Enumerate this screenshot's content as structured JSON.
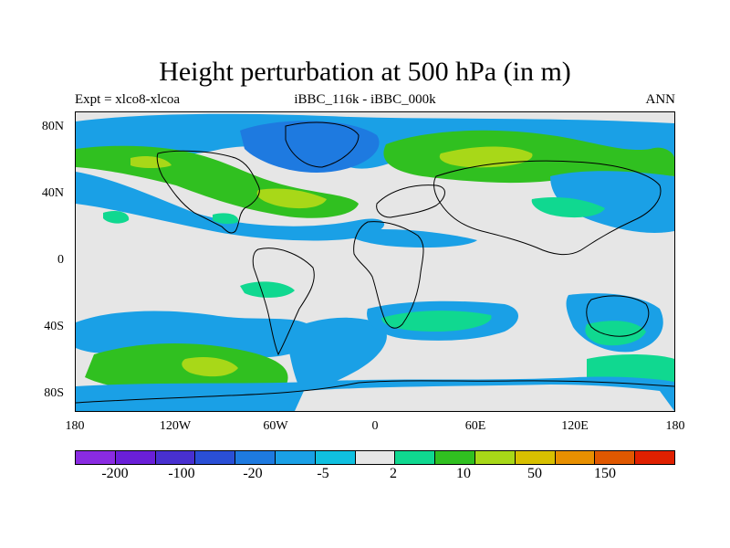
{
  "title": "Height perturbation at 500 hPa (in m)",
  "subtitle": {
    "left": "Expt = xlco8-xlcoa",
    "center": "iBBC_116k - iBBC_000k",
    "right": "ANN"
  },
  "map": {
    "projection": "cylindrical equidistant",
    "lon_range": [
      -180,
      180
    ],
    "lat_range": [
      -90,
      90
    ],
    "lat_labels": [
      "80N",
      "40N",
      "0",
      "40S",
      "80S"
    ],
    "lon_labels": [
      "180",
      "120W",
      "60W",
      "0",
      "60E",
      "120E",
      "180"
    ],
    "background_color": "#e6e6e6",
    "coastlines": true
  },
  "colorbar": {
    "colors": [
      "#8a2be2",
      "#6a1fd8",
      "#4830d0",
      "#2a4fd6",
      "#1e7ae0",
      "#1aa0e6",
      "#10c0e0",
      "#e6e6e6",
      "#10d890",
      "#30c020",
      "#a8d818",
      "#d8c000",
      "#e89000",
      "#e05800",
      "#e02000"
    ],
    "labels": [
      "-200",
      "-100",
      "-20",
      "-5",
      "2",
      "10",
      "50",
      "150"
    ]
  }
}
